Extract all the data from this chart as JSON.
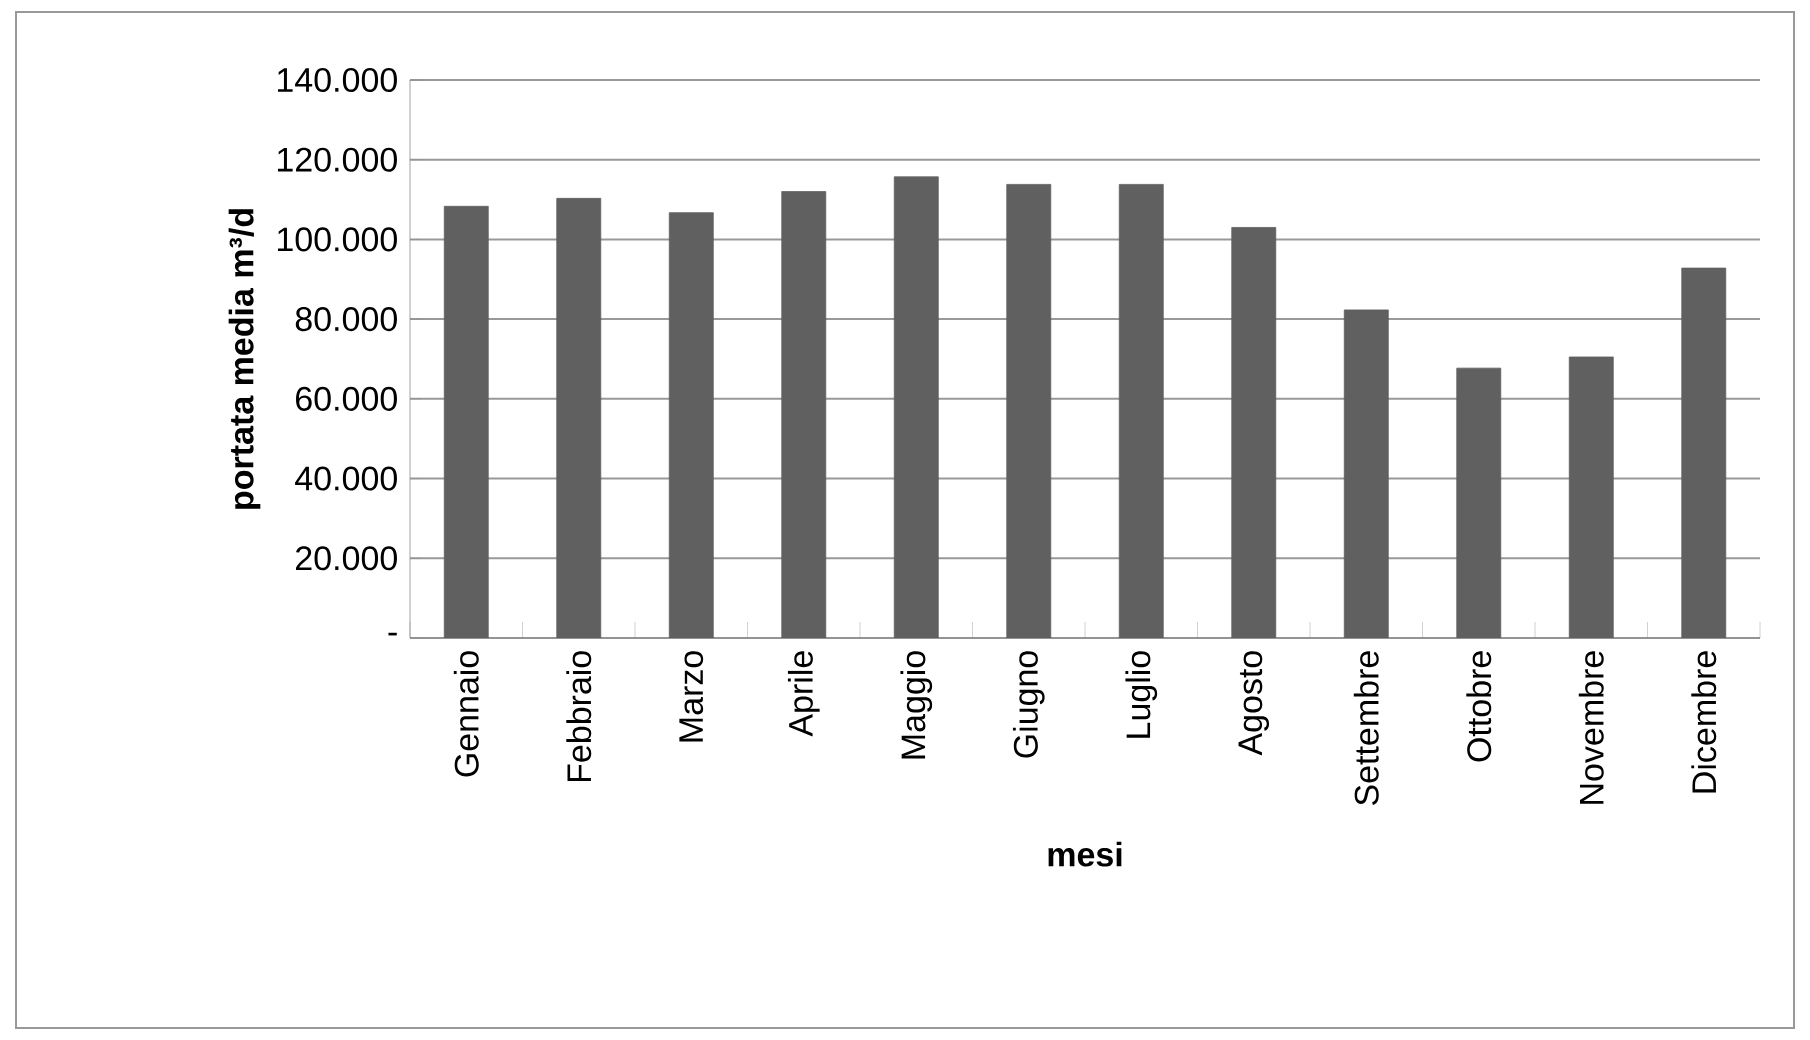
{
  "chart_data": {
    "type": "bar",
    "xlabel": "mesi",
    "ylabel": "portata media m³/d",
    "categories": [
      "Gennaio",
      "Febbraio",
      "Marzo",
      "Aprile",
      "Maggio",
      "Giugno",
      "Luglio",
      "Agosto",
      "Settembre",
      "Ottobre",
      "Novembre",
      "Dicembre"
    ],
    "values": [
      108300,
      110300,
      106700,
      112000,
      115700,
      113800,
      113800,
      103000,
      82300,
      67700,
      70500,
      92800
    ],
    "color": "#606060",
    "ylim": [
      0,
      140000
    ],
    "yticks": [
      {
        "value": 0,
        "label": "-"
      },
      {
        "value": 20000,
        "label": "20.000"
      },
      {
        "value": 40000,
        "label": "40.000"
      },
      {
        "value": 60000,
        "label": "60.000"
      },
      {
        "value": 80000,
        "label": "80.000"
      },
      {
        "value": 100000,
        "label": "100.000"
      },
      {
        "value": 120000,
        "label": "120.000"
      },
      {
        "value": 140000,
        "label": "140.000"
      }
    ],
    "grid": "y"
  }
}
